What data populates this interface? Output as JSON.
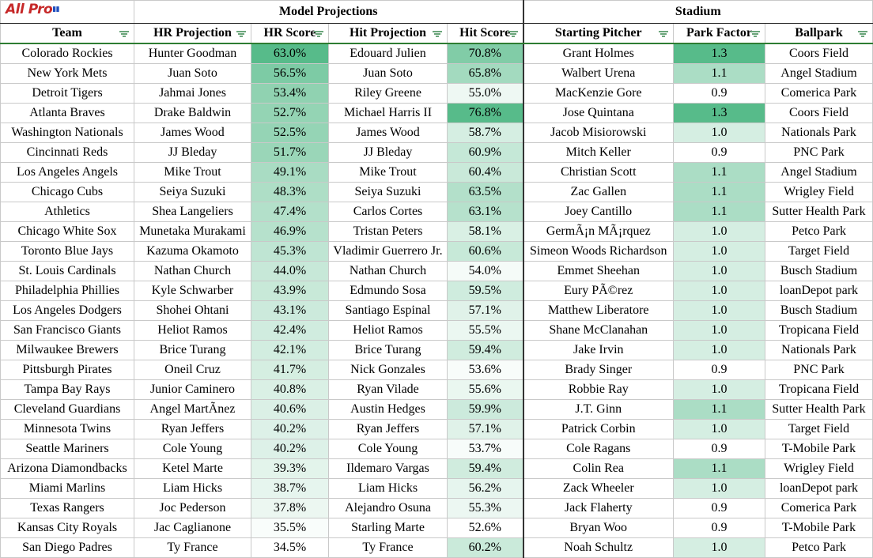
{
  "logo": {
    "text": "AllPro"
  },
  "groups": {
    "model": "Model Projections",
    "stadium": "Stadium"
  },
  "headers": [
    "Team",
    "HR Projection",
    "HR Score",
    "Hit Projection",
    "Hit Score",
    "Starting Pitcher",
    "Park Factor",
    "Ballpark"
  ],
  "rows": [
    [
      "Colorado Rockies",
      "Hunter Goodman",
      "63.0%",
      "Edouard Julien",
      "70.8%",
      "Grant Holmes",
      "1.3",
      "Coors Field"
    ],
    [
      "New York Mets",
      "Juan Soto",
      "56.5%",
      "Juan Soto",
      "65.8%",
      "Walbert Urena",
      "1.1",
      "Angel Stadium"
    ],
    [
      "Detroit Tigers",
      "Jahmai Jones",
      "53.4%",
      "Riley Greene",
      "55.0%",
      "MacKenzie Gore",
      "0.9",
      "Comerica Park"
    ],
    [
      "Atlanta Braves",
      "Drake Baldwin",
      "52.7%",
      "Michael Harris II",
      "76.8%",
      "Jose Quintana",
      "1.3",
      "Coors Field"
    ],
    [
      "Washington Nationals",
      "James Wood",
      "52.5%",
      "James Wood",
      "58.7%",
      "Jacob Misiorowski",
      "1.0",
      "Nationals Park"
    ],
    [
      "Cincinnati Reds",
      "JJ Bleday",
      "51.7%",
      "JJ Bleday",
      "60.9%",
      "Mitch Keller",
      "0.9",
      "PNC Park"
    ],
    [
      "Los Angeles Angels",
      "Mike Trout",
      "49.1%",
      "Mike Trout",
      "60.4%",
      "Christian Scott",
      "1.1",
      "Angel Stadium"
    ],
    [
      "Chicago Cubs",
      "Seiya Suzuki",
      "48.3%",
      "Seiya Suzuki",
      "63.5%",
      "Zac Gallen",
      "1.1",
      "Wrigley Field"
    ],
    [
      "Athletics",
      "Shea Langeliers",
      "47.4%",
      "Carlos Cortes",
      "63.1%",
      "Joey Cantillo",
      "1.1",
      "Sutter Health Park"
    ],
    [
      "Chicago White Sox",
      "Munetaka Murakami",
      "46.9%",
      "Tristan Peters",
      "58.1%",
      "GermÃ¡n MÃ¡rquez",
      "1.0",
      "Petco Park"
    ],
    [
      "Toronto Blue Jays",
      "Kazuma Okamoto",
      "45.3%",
      "Vladimir Guerrero Jr.",
      "60.6%",
      "Simeon Woods Richardson",
      "1.0",
      "Target Field"
    ],
    [
      "St. Louis Cardinals",
      "Nathan Church",
      "44.0%",
      "Nathan Church",
      "54.0%",
      "Emmet Sheehan",
      "1.0",
      "Busch Stadium"
    ],
    [
      "Philadelphia Phillies",
      "Kyle Schwarber",
      "43.9%",
      "Edmundo Sosa",
      "59.5%",
      "Eury PÃ©rez",
      "1.0",
      "loanDepot park"
    ],
    [
      "Los Angeles Dodgers",
      "Shohei Ohtani",
      "43.1%",
      "Santiago Espinal",
      "57.1%",
      "Matthew Liberatore",
      "1.0",
      "Busch Stadium"
    ],
    [
      "San Francisco Giants",
      "Heliot Ramos",
      "42.4%",
      "Heliot Ramos",
      "55.5%",
      "Shane McClanahan",
      "1.0",
      "Tropicana Field"
    ],
    [
      "Milwaukee Brewers",
      "Brice Turang",
      "42.1%",
      "Brice Turang",
      "59.4%",
      "Jake Irvin",
      "1.0",
      "Nationals Park"
    ],
    [
      "Pittsburgh Pirates",
      "Oneil Cruz",
      "41.7%",
      "Nick Gonzales",
      "53.6%",
      "Brady Singer",
      "0.9",
      "PNC Park"
    ],
    [
      "Tampa Bay Rays",
      "Junior Caminero",
      "40.8%",
      "Ryan Vilade",
      "55.6%",
      "Robbie Ray",
      "1.0",
      "Tropicana Field"
    ],
    [
      "Cleveland Guardians",
      "Angel MartÃnez",
      "40.6%",
      "Austin Hedges",
      "59.9%",
      "J.T. Ginn",
      "1.1",
      "Sutter Health Park"
    ],
    [
      "Minnesota Twins",
      "Ryan Jeffers",
      "40.2%",
      "Ryan Jeffers",
      "57.1%",
      "Patrick Corbin",
      "1.0",
      "Target Field"
    ],
    [
      "Seattle Mariners",
      "Cole Young",
      "40.2%",
      "Cole Young",
      "53.7%",
      "Cole Ragans",
      "0.9",
      "T-Mobile Park"
    ],
    [
      "Arizona Diamondbacks",
      "Ketel Marte",
      "39.3%",
      "Ildemaro Vargas",
      "59.4%",
      "Colin Rea",
      "1.1",
      "Wrigley Field"
    ],
    [
      "Miami Marlins",
      "Liam Hicks",
      "38.7%",
      "Liam Hicks",
      "56.2%",
      "Zack Wheeler",
      "1.0",
      "loanDepot park"
    ],
    [
      "Texas Rangers",
      "Joc Pederson",
      "37.8%",
      "Alejandro Osuna",
      "55.3%",
      "Jack Flaherty",
      "0.9",
      "Comerica Park"
    ],
    [
      "Kansas City Royals",
      "Jac Caglianone",
      "35.5%",
      "Starling Marte",
      "52.6%",
      "Bryan Woo",
      "0.9",
      "T-Mobile Park"
    ],
    [
      "San Diego Padres",
      "Ty France",
      "34.5%",
      "Ty France",
      "60.2%",
      "Noah Schultz",
      "1.0",
      "Petco Park"
    ]
  ],
  "colors": {
    "scale_high": "#57bb8a",
    "scale_low": "#ffffff",
    "header_border": "#2e7d32"
  }
}
